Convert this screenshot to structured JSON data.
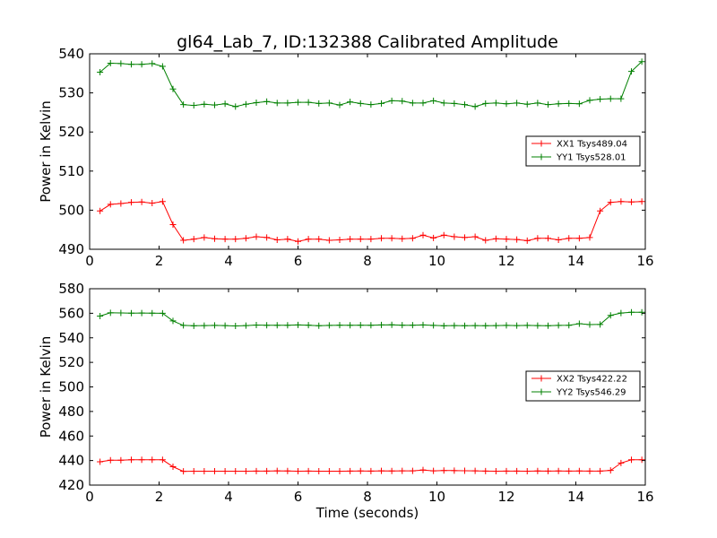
{
  "figure": {
    "title": "gl64_Lab_7, ID:132388 Calibrated Amplitude"
  },
  "chart_data": [
    {
      "type": "line",
      "ylabel": "Power in Kelvin",
      "xlabel": "",
      "xlim": [
        0,
        16
      ],
      "ylim": [
        490,
        540
      ],
      "xticks": [
        0,
        2,
        4,
        6,
        8,
        10,
        12,
        14,
        16
      ],
      "yticks": [
        490,
        500,
        510,
        520,
        530,
        540
      ],
      "legend_position": "center-right",
      "grid": false,
      "x": [
        0.3,
        0.6,
        0.9,
        1.2,
        1.5,
        1.8,
        2.1,
        2.4,
        2.7,
        3.0,
        3.3,
        3.6,
        3.9,
        4.2,
        4.5,
        4.8,
        5.1,
        5.4,
        5.7,
        6.0,
        6.3,
        6.6,
        6.9,
        7.2,
        7.5,
        7.8,
        8.1,
        8.4,
        8.7,
        9.0,
        9.3,
        9.6,
        9.9,
        10.2,
        10.5,
        10.8,
        11.1,
        11.4,
        11.7,
        12.0,
        12.3,
        12.6,
        12.9,
        13.2,
        13.5,
        13.8,
        14.1,
        14.4,
        14.7,
        15.0,
        15.3,
        15.6,
        15.9
      ],
      "series": [
        {
          "name": "XX1 Tsys489.04",
          "color": "#ff0000",
          "values": [
            499.8,
            501.5,
            501.7,
            502.0,
            502.1,
            501.8,
            502.2,
            496.3,
            492.3,
            492.6,
            493.0,
            492.7,
            492.6,
            492.6,
            492.8,
            493.2,
            493.0,
            492.4,
            492.6,
            492.0,
            492.6,
            492.6,
            492.3,
            492.4,
            492.6,
            492.6,
            492.6,
            492.8,
            492.8,
            492.7,
            492.8,
            493.6,
            492.9,
            493.6,
            493.2,
            493.0,
            493.2,
            492.3,
            492.7,
            492.6,
            492.5,
            492.2,
            492.8,
            492.8,
            492.4,
            492.8,
            492.8,
            493.0,
            499.8,
            502.0,
            502.2,
            502.1,
            502.2
          ]
        },
        {
          "name": "YY1 Tsys528.01",
          "color": "#008000",
          "values": [
            535.3,
            537.6,
            537.5,
            537.3,
            537.3,
            537.5,
            536.8,
            531.0,
            527.0,
            526.8,
            527.1,
            526.9,
            527.2,
            526.5,
            527.1,
            527.5,
            527.8,
            527.4,
            527.4,
            527.6,
            527.6,
            527.3,
            527.4,
            526.9,
            527.7,
            527.3,
            527.0,
            527.3,
            528.0,
            527.9,
            527.4,
            527.4,
            528.0,
            527.4,
            527.3,
            527.0,
            526.5,
            527.3,
            527.4,
            527.2,
            527.4,
            527.1,
            527.4,
            527.0,
            527.2,
            527.3,
            527.2,
            528.1,
            528.4,
            528.5,
            528.5,
            535.5,
            538.0
          ]
        }
      ]
    },
    {
      "type": "line",
      "ylabel": "Power in Kelvin",
      "xlabel": "Time (seconds)",
      "xlim": [
        0,
        16
      ],
      "ylim": [
        420,
        580
      ],
      "xticks": [
        0,
        2,
        4,
        6,
        8,
        10,
        12,
        14,
        16
      ],
      "yticks": [
        420,
        440,
        460,
        480,
        500,
        520,
        540,
        560,
        580
      ],
      "legend_position": "center-right",
      "grid": false,
      "x": [
        0.3,
        0.6,
        0.9,
        1.2,
        1.5,
        1.8,
        2.1,
        2.4,
        2.7,
        3.0,
        3.3,
        3.6,
        3.9,
        4.2,
        4.5,
        4.8,
        5.1,
        5.4,
        5.7,
        6.0,
        6.3,
        6.6,
        6.9,
        7.2,
        7.5,
        7.8,
        8.1,
        8.4,
        8.7,
        9.0,
        9.3,
        9.6,
        9.9,
        10.2,
        10.5,
        10.8,
        11.1,
        11.4,
        11.7,
        12.0,
        12.3,
        12.6,
        12.9,
        13.2,
        13.5,
        13.8,
        14.1,
        14.4,
        14.7,
        15.0,
        15.3,
        15.6,
        15.9
      ],
      "series": [
        {
          "name": "XX2 Tsys422.22",
          "color": "#ff0000",
          "values": [
            439.0,
            440.3,
            440.3,
            440.6,
            440.6,
            440.6,
            440.6,
            435.0,
            431.2,
            431.3,
            431.3,
            431.3,
            431.3,
            431.3,
            431.3,
            431.4,
            431.4,
            431.6,
            431.5,
            431.3,
            431.4,
            431.3,
            431.3,
            431.3,
            431.4,
            431.5,
            431.4,
            431.6,
            431.5,
            431.6,
            431.6,
            432.3,
            431.6,
            431.9,
            431.8,
            431.7,
            431.6,
            431.4,
            431.3,
            431.4,
            431.4,
            431.3,
            431.5,
            431.4,
            431.5,
            431.4,
            431.5,
            431.4,
            431.4,
            432.0,
            438.0,
            440.6,
            440.6
          ]
        },
        {
          "name": "YY2 Tsys546.29",
          "color": "#008000",
          "values": [
            557.7,
            560.4,
            560.3,
            560.1,
            560.2,
            560.1,
            560.0,
            553.8,
            550.1,
            549.8,
            550.0,
            550.1,
            550.0,
            549.7,
            550.0,
            550.4,
            550.2,
            550.2,
            550.2,
            550.5,
            550.3,
            549.9,
            550.1,
            550.3,
            550.2,
            550.3,
            550.2,
            550.5,
            550.6,
            550.3,
            550.3,
            550.5,
            550.1,
            549.8,
            550.0,
            549.9,
            550.0,
            549.9,
            550.0,
            550.1,
            550.0,
            550.1,
            550.0,
            549.9,
            550.1,
            550.2,
            551.5,
            550.8,
            550.9,
            558.3,
            560.2,
            560.8,
            560.8
          ]
        }
      ]
    }
  ]
}
